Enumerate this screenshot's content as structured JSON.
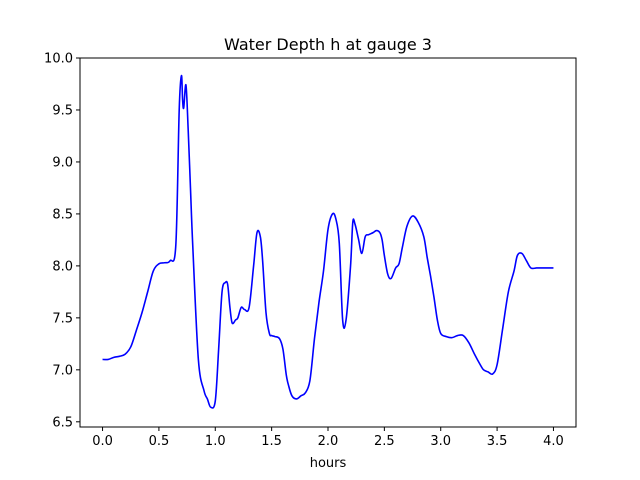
{
  "chart_data": {
    "type": "line",
    "title": "Water Depth h at gauge 3",
    "xlabel": "hours",
    "ylabel": "",
    "xlim": [
      -0.2,
      4.2
    ],
    "ylim": [
      6.45,
      10.0
    ],
    "xticks": [
      0.0,
      0.5,
      1.0,
      1.5,
      2.0,
      2.5,
      3.0,
      3.5,
      4.0
    ],
    "xtick_labels": [
      "0.0",
      "0.5",
      "1.0",
      "1.5",
      "2.0",
      "2.5",
      "3.0",
      "3.5",
      "4.0"
    ],
    "yticks": [
      6.5,
      7.0,
      7.5,
      8.0,
      8.5,
      9.0,
      9.5,
      10.0
    ],
    "ytick_labels": [
      "6.5",
      "7.0",
      "7.5",
      "8.0",
      "8.5",
      "9.0",
      "9.5",
      "10.0"
    ],
    "grid": false,
    "series": [
      {
        "color": "#0000ff",
        "x": [
          0.0,
          0.05,
          0.1,
          0.15,
          0.2,
          0.25,
          0.3,
          0.35,
          0.4,
          0.45,
          0.5,
          0.55,
          0.6,
          0.65,
          0.68,
          0.7,
          0.71,
          0.72,
          0.74,
          0.76,
          0.78,
          0.8,
          0.85,
          0.9,
          0.93,
          0.96,
          1.0,
          1.03,
          1.06,
          1.09,
          1.11,
          1.13,
          1.15,
          1.18,
          1.2,
          1.23,
          1.26,
          1.3,
          1.34,
          1.37,
          1.4,
          1.42,
          1.45,
          1.48,
          1.5,
          1.53,
          1.57,
          1.6,
          1.63,
          1.65,
          1.68,
          1.72,
          1.76,
          1.8,
          1.84,
          1.88,
          1.92,
          1.96,
          2.0,
          2.04,
          2.07,
          2.1,
          2.13,
          2.16,
          2.2,
          2.22,
          2.24,
          2.27,
          2.3,
          2.33,
          2.36,
          2.4,
          2.43,
          2.46,
          2.48,
          2.5,
          2.53,
          2.56,
          2.6,
          2.63,
          2.66,
          2.7,
          2.75,
          2.8,
          2.85,
          2.88,
          2.91,
          2.94,
          2.97,
          3.0,
          3.05,
          3.1,
          3.15,
          3.2,
          3.25,
          3.3,
          3.35,
          3.38,
          3.42,
          3.46,
          3.5,
          3.55,
          3.6,
          3.65,
          3.68,
          3.72,
          3.76,
          3.8,
          3.85,
          3.9,
          3.93,
          3.96,
          4.0
        ],
        "y": [
          7.1,
          7.1,
          7.12,
          7.13,
          7.15,
          7.22,
          7.38,
          7.55,
          7.75,
          7.95,
          8.02,
          8.03,
          8.05,
          8.2,
          9.5,
          9.83,
          9.6,
          9.52,
          9.74,
          9.3,
          8.75,
          8.2,
          7.1,
          6.8,
          6.72,
          6.64,
          6.7,
          7.2,
          7.75,
          7.84,
          7.82,
          7.6,
          7.45,
          7.48,
          7.5,
          7.6,
          7.58,
          7.6,
          8.0,
          8.32,
          8.28,
          8.05,
          7.55,
          7.35,
          7.33,
          7.32,
          7.3,
          7.2,
          6.95,
          6.85,
          6.75,
          6.72,
          6.75,
          6.78,
          6.9,
          7.3,
          7.65,
          7.95,
          8.35,
          8.5,
          8.45,
          8.22,
          7.48,
          7.48,
          8.0,
          8.42,
          8.4,
          8.26,
          8.12,
          8.28,
          8.3,
          8.32,
          8.34,
          8.32,
          8.25,
          8.1,
          7.92,
          7.88,
          7.98,
          8.02,
          8.18,
          8.38,
          8.48,
          8.42,
          8.28,
          8.08,
          7.9,
          7.7,
          7.48,
          7.35,
          7.32,
          7.31,
          7.33,
          7.33,
          7.26,
          7.15,
          7.05,
          7.0,
          6.98,
          6.96,
          7.05,
          7.4,
          7.75,
          7.95,
          8.1,
          8.12,
          8.05,
          7.98,
          7.98,
          7.98,
          7.98,
          7.98,
          7.98
        ]
      }
    ]
  }
}
